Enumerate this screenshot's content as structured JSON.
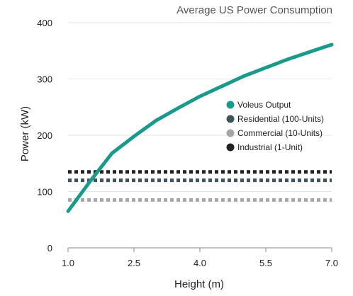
{
  "chart_data": {
    "type": "line",
    "title": "Average US Power Consumption",
    "xlabel": "Height (m)",
    "ylabel": "Power (kW)",
    "xlim": [
      1.0,
      7.0
    ],
    "ylim": [
      0,
      400
    ],
    "xticks": [
      "1.0",
      "2.5",
      "4.0",
      "5.5",
      "7.0"
    ],
    "yticks": [
      "0",
      "100",
      "200",
      "300",
      "400"
    ],
    "grid": true,
    "legend_position": "right",
    "series": [
      {
        "name": "Voleus Output",
        "style": "solid",
        "color": "#1a9a8a",
        "x": [
          1.0,
          1.5,
          2.0,
          2.5,
          3.0,
          3.5,
          4.0,
          4.5,
          5.0,
          5.5,
          6.0,
          6.5,
          7.0
        ],
        "y": [
          65,
          118,
          168,
          198,
          226,
          248,
          269,
          287,
          305,
          320,
          335,
          348,
          361
        ]
      },
      {
        "name": "Residential (100-Units)",
        "style": "dotted",
        "color": "#3f545e",
        "x": [
          1.0,
          7.0
        ],
        "y": [
          120,
          120
        ]
      },
      {
        "name": "Commercial (10-Units)",
        "style": "dotted",
        "color": "#a6a6a6",
        "x": [
          1.0,
          7.0
        ],
        "y": [
          85,
          85
        ]
      },
      {
        "name": "Industrial (1-Unit)",
        "style": "dotted",
        "color": "#222222",
        "x": [
          1.0,
          7.0
        ],
        "y": [
          135,
          135
        ]
      }
    ]
  }
}
